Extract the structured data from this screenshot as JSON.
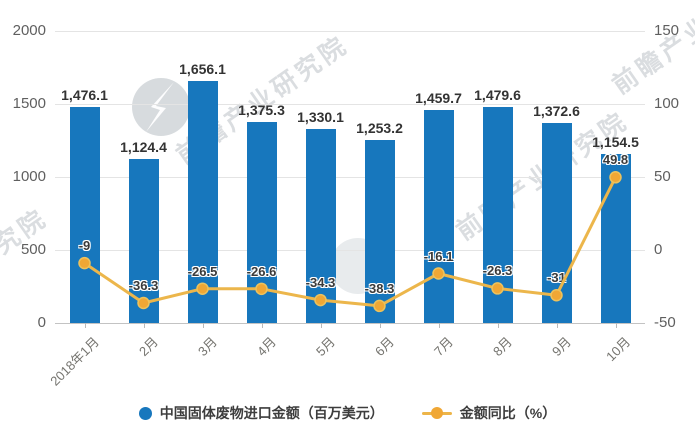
{
  "watermarks": {
    "brand_text": "前瞻产业研究院",
    "partial_text": "究院"
  },
  "legend": [
    {
      "label": "中国固体废物进口金额（百万美元）",
      "color": "#1777bd",
      "marker": "dot"
    },
    {
      "label": "金额同比（%）",
      "color": "#edb549",
      "marker_dot_color": "#f0a735",
      "marker": "line-dot"
    }
  ],
  "chart_data": {
    "type": "bar+line",
    "title": "",
    "xlabel": "",
    "ylabel_left": "",
    "ylabel_right": "",
    "grid": true,
    "legend_position": "bottom",
    "categories": [
      "2018年1月",
      "2月",
      "3月",
      "4月",
      "5月",
      "6月",
      "7月",
      "8月",
      "9月",
      "10月"
    ],
    "series": [
      {
        "name": "中国固体废物进口金额（百万美元）",
        "chart": "bar",
        "axis": "left",
        "color": "#1777bd",
        "values": [
          1476.1,
          1124.4,
          1656.1,
          1375.3,
          1330.1,
          1253.2,
          1459.7,
          1479.6,
          1372.6,
          1154.5
        ],
        "labels": [
          "1,476.1",
          "1,124.4",
          "1,656.1",
          "1,375.3",
          "1,330.1",
          "1,253.2",
          "1,459.7",
          "1,479.6",
          "1,372.6",
          "1,154.5"
        ]
      },
      {
        "name": "金额同比（%）",
        "chart": "line",
        "axis": "right",
        "color": "#ecb64b",
        "marker_fill": "#f0a735",
        "marker_stroke": "#ecc25d",
        "values": [
          -9,
          -36.3,
          -26.5,
          -26.6,
          -34.3,
          -38.3,
          -16.1,
          -26.3,
          -31,
          49.8
        ],
        "labels": [
          "-9",
          "-36.3",
          "-26.5",
          "-26.6",
          "-34.3",
          "-38.3",
          "-16.1",
          "-26.3",
          "-31",
          "49.8"
        ]
      }
    ],
    "left_axis": {
      "min": 0,
      "max": 2000,
      "tick_values": [
        0,
        500,
        1000,
        1500,
        2000
      ],
      "tick_labels": [
        "0",
        "500",
        "1000",
        "1500",
        "2000"
      ]
    },
    "right_axis": {
      "min": -50,
      "max": 150,
      "tick_values": [
        -50,
        0,
        50,
        100,
        150
      ],
      "tick_labels": [
        "-50",
        "0",
        "50",
        "100",
        "150"
      ]
    }
  }
}
